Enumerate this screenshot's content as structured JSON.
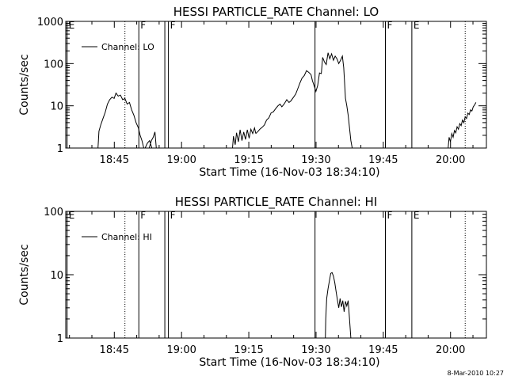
{
  "footer": {
    "stamp": "8-Mar-2010 10:27"
  },
  "chart_data": [
    {
      "type": "line",
      "title": "HESSI PARTICLE_RATE Channel: LO",
      "xlabel": "Start Time (16-Nov-03 18:34:10)",
      "ylabel": "Counts/sec",
      "yscale": "log",
      "ylim": [
        1,
        1000
      ],
      "y_ticks": [
        1,
        10,
        100,
        1000
      ],
      "y_tick_labels": [
        "1",
        "10",
        "100",
        "1000"
      ],
      "x_unit": "minutes since 18:34:10",
      "xlim": [
        0,
        93.83
      ],
      "x_ticks": [
        10.83,
        25.83,
        40.83,
        55.83,
        70.83,
        85.83
      ],
      "x_tick_labels": [
        "18:45",
        "19:00",
        "19:15",
        "19:30",
        "19:45",
        "20:00"
      ],
      "legend": {
        "label": "Channel: LO",
        "position": "top-left"
      },
      "vertical_markers": [
        {
          "x": 0.3,
          "label": "E",
          "style": "solid"
        },
        {
          "x": 13.2,
          "label": "",
          "style": "dotted"
        },
        {
          "x": 16.3,
          "label": "F",
          "style": "solid"
        },
        {
          "x": 22.1,
          "label": "",
          "style": "solid"
        },
        {
          "x": 22.9,
          "label": "F",
          "style": "solid"
        },
        {
          "x": 55.6,
          "label": "",
          "style": "solid"
        },
        {
          "x": 71.3,
          "label": "F",
          "style": "solid"
        },
        {
          "x": 77.2,
          "label": "E",
          "style": "solid"
        },
        {
          "x": 89.1,
          "label": "",
          "style": "dotted"
        }
      ],
      "segments": [
        [
          [
            7.2,
            1
          ],
          [
            7.4,
            2.5
          ],
          [
            7.8,
            3.5
          ],
          [
            8.3,
            5
          ],
          [
            8.8,
            7
          ],
          [
            9.3,
            11
          ],
          [
            9.8,
            14
          ],
          [
            10.3,
            16
          ],
          [
            10.8,
            15
          ],
          [
            11.2,
            20
          ],
          [
            11.7,
            17
          ],
          [
            12.2,
            18
          ],
          [
            12.7,
            14
          ],
          [
            13.2,
            15
          ],
          [
            13.7,
            11
          ],
          [
            14.2,
            12
          ],
          [
            14.7,
            8
          ],
          [
            15.2,
            6
          ],
          [
            15.7,
            4
          ],
          [
            16.2,
            3
          ],
          [
            16.6,
            2
          ],
          [
            17.0,
            1.5
          ],
          [
            17.4,
            1
          ]
        ],
        [
          [
            17.7,
            1
          ],
          [
            18.2,
            1.3
          ],
          [
            18.7,
            1.5
          ],
          [
            19.2,
            1
          ]
        ],
        [
          [
            18.6,
            1
          ],
          [
            19.1,
            1.5
          ],
          [
            19.5,
            1.8
          ],
          [
            19.9,
            2.4
          ],
          [
            20.2,
            1
          ]
        ],
        [
          [
            37.2,
            1
          ],
          [
            37.4,
            1.9
          ],
          [
            37.8,
            1.2
          ],
          [
            38.1,
            2.3
          ],
          [
            38.5,
            1.4
          ],
          [
            38.9,
            2.7
          ],
          [
            39.3,
            1.5
          ],
          [
            39.7,
            2.4
          ],
          [
            40.1,
            1.6
          ],
          [
            40.5,
            2.7
          ],
          [
            40.9,
            1.7
          ],
          [
            41.3,
            2.8
          ],
          [
            41.7,
            2.2
          ],
          [
            42.1,
            3
          ],
          [
            42.4,
            2.2
          ]
        ],
        [
          [
            42.4,
            2.2
          ],
          [
            42.9,
            2.5
          ],
          [
            43.3,
            2.8
          ],
          [
            43.8,
            3.1
          ],
          [
            44.3,
            3.5
          ],
          [
            44.8,
            4.6
          ],
          [
            45.3,
            5.2
          ],
          [
            45.8,
            6.8
          ],
          [
            46.3,
            7.2
          ],
          [
            46.8,
            8.5
          ],
          [
            47.3,
            9.9
          ],
          [
            47.8,
            11
          ],
          [
            48.2,
            9.5
          ],
          [
            48.7,
            11
          ],
          [
            49.3,
            14
          ],
          [
            49.8,
            12
          ],
          [
            50.2,
            13
          ],
          [
            50.8,
            16
          ],
          [
            51.3,
            19
          ],
          [
            51.8,
            26
          ],
          [
            52.2,
            34
          ],
          [
            52.7,
            45
          ],
          [
            53.2,
            52
          ],
          [
            53.7,
            68
          ],
          [
            54.2,
            62
          ],
          [
            54.7,
            55
          ],
          [
            55.0,
            40
          ],
          [
            55.4,
            30
          ],
          [
            55.8,
            22
          ],
          [
            56.2,
            30
          ],
          [
            56.6,
            60
          ],
          [
            57.0,
            58
          ],
          [
            57.3,
            140
          ],
          [
            57.7,
            110
          ],
          [
            58.1,
            95
          ],
          [
            58.5,
            180
          ],
          [
            58.9,
            130
          ],
          [
            59.3,
            170
          ],
          [
            59.7,
            120
          ],
          [
            60.1,
            150
          ],
          [
            60.5,
            130
          ],
          [
            60.9,
            100
          ],
          [
            61.3,
            120
          ],
          [
            61.7,
            150
          ],
          [
            62.0,
            80
          ],
          [
            62.4,
            15
          ],
          [
            62.7,
            10
          ],
          [
            63.0,
            6
          ],
          [
            63.3,
            3
          ],
          [
            63.6,
            1.5
          ],
          [
            63.9,
            1
          ]
        ],
        [
          [
            85.3,
            1
          ],
          [
            85.5,
            1.8
          ],
          [
            85.8,
            1.4
          ],
          [
            86.1,
            2.2
          ],
          [
            86.4,
            1.8
          ],
          [
            86.7,
            2.6
          ],
          [
            87.0,
            2.3
          ],
          [
            87.3,
            3.2
          ],
          [
            87.6,
            2.8
          ],
          [
            87.9,
            3.8
          ],
          [
            88.2,
            3.4
          ],
          [
            88.5,
            4.6
          ],
          [
            88.8,
            4.0
          ],
          [
            89.1,
            5.5
          ],
          [
            89.4,
            5
          ],
          [
            89.7,
            6.7
          ],
          [
            90.0,
            6.2
          ],
          [
            90.3,
            8
          ],
          [
            90.6,
            7.5
          ],
          [
            90.9,
            9.5
          ],
          [
            91.2,
            10.5
          ],
          [
            91.5,
            12
          ]
        ]
      ]
    },
    {
      "type": "line",
      "title": "HESSI PARTICLE_RATE Channel: HI",
      "xlabel": "Start Time (16-Nov-03 18:34:10)",
      "ylabel": "Counts/sec",
      "yscale": "log",
      "ylim": [
        1,
        100
      ],
      "y_ticks": [
        1,
        10,
        100
      ],
      "y_tick_labels": [
        "1",
        "10",
        "100"
      ],
      "x_unit": "minutes since 18:34:10",
      "xlim": [
        0,
        93.83
      ],
      "x_ticks": [
        10.83,
        25.83,
        40.83,
        55.83,
        70.83,
        85.83
      ],
      "x_tick_labels": [
        "18:45",
        "19:00",
        "19:15",
        "19:30",
        "19:45",
        "20:00"
      ],
      "legend": {
        "label": "Channel: HI",
        "position": "top-left"
      },
      "vertical_markers": [
        {
          "x": 0.3,
          "label": "E",
          "style": "solid"
        },
        {
          "x": 13.2,
          "label": "",
          "style": "dotted"
        },
        {
          "x": 16.3,
          "label": "F",
          "style": "solid"
        },
        {
          "x": 22.1,
          "label": "",
          "style": "solid"
        },
        {
          "x": 22.9,
          "label": "F",
          "style": "solid"
        },
        {
          "x": 55.6,
          "label": "",
          "style": "solid"
        },
        {
          "x": 71.3,
          "label": "F",
          "style": "solid"
        },
        {
          "x": 77.2,
          "label": "E",
          "style": "solid"
        },
        {
          "x": 89.1,
          "label": "",
          "style": "dotted"
        }
      ],
      "segments": [
        [
          [
            57.9,
            1
          ],
          [
            58.0,
            2
          ],
          [
            58.2,
            4.2
          ],
          [
            58.5,
            6
          ],
          [
            58.8,
            8
          ],
          [
            59.1,
            10.5
          ],
          [
            59.4,
            10.8
          ],
          [
            59.7,
            9.5
          ],
          [
            60.0,
            7.5
          ],
          [
            60.3,
            5.5
          ],
          [
            60.6,
            4
          ],
          [
            60.9,
            3
          ],
          [
            61.2,
            4.2
          ],
          [
            61.5,
            3.1
          ],
          [
            61.8,
            3.9
          ],
          [
            62.1,
            2.6
          ],
          [
            62.4,
            3.8
          ],
          [
            62.7,
            3.2
          ],
          [
            63.0,
            3.9
          ],
          [
            63.3,
            2
          ],
          [
            63.6,
            1
          ]
        ]
      ]
    }
  ]
}
